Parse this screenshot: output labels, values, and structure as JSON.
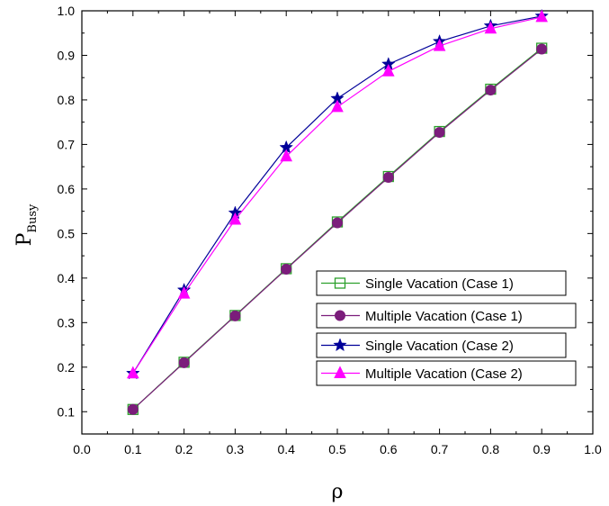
{
  "chart_data": {
    "type": "line",
    "title": "",
    "xlabel": "ρ",
    "ylabel": {
      "main": "P",
      "subscript": "Busy"
    },
    "xlim": [
      0.0,
      1.0
    ],
    "ylim": [
      0.05,
      1.0
    ],
    "xticks": [
      0.0,
      0.1,
      0.2,
      0.3,
      0.4,
      0.5,
      0.6,
      0.7,
      0.8,
      0.9,
      1.0
    ],
    "xtick_labels": [
      "0.0",
      "0.1",
      "0.2",
      "0.3",
      "0.4",
      "0.5",
      "0.6",
      "0.7",
      "0.8",
      "0.9",
      "1.0"
    ],
    "yticks": [
      0.1,
      0.2,
      0.3,
      0.4,
      0.5,
      0.6,
      0.7,
      0.8,
      0.9,
      1.0
    ],
    "ytick_labels": [
      "0.1",
      "0.2",
      "0.3",
      "0.4",
      "0.5",
      "0.6",
      "0.7",
      "0.8",
      "0.9",
      "1.0"
    ],
    "grid": false,
    "legend_position": "lower-right",
    "x": [
      0.1,
      0.2,
      0.3,
      0.4,
      0.5,
      0.6,
      0.7,
      0.8,
      0.9
    ],
    "series": [
      {
        "name": "Single Vacation (Case 1)",
        "marker": "square",
        "color": "#2ca02c",
        "values": [
          0.105,
          0.211,
          0.316,
          0.421,
          0.526,
          0.628,
          0.729,
          0.824,
          0.916
        ]
      },
      {
        "name": "Multiple Vacation (Case 1)",
        "marker": "circle",
        "color": "#7b1d7b",
        "values": [
          0.105,
          0.21,
          0.315,
          0.42,
          0.524,
          0.626,
          0.727,
          0.822,
          0.914
        ]
      },
      {
        "name": "Single Vacation (Case 2)",
        "marker": "star",
        "color": "#000099",
        "values": [
          0.186,
          0.373,
          0.546,
          0.693,
          0.803,
          0.88,
          0.931,
          0.966,
          0.988
        ]
      },
      {
        "name": "Multiple Vacation (Case 2)",
        "marker": "triangle",
        "color": "#ff00ff",
        "values": [
          0.186,
          0.365,
          0.531,
          0.673,
          0.784,
          0.864,
          0.921,
          0.96,
          0.986
        ]
      }
    ]
  }
}
